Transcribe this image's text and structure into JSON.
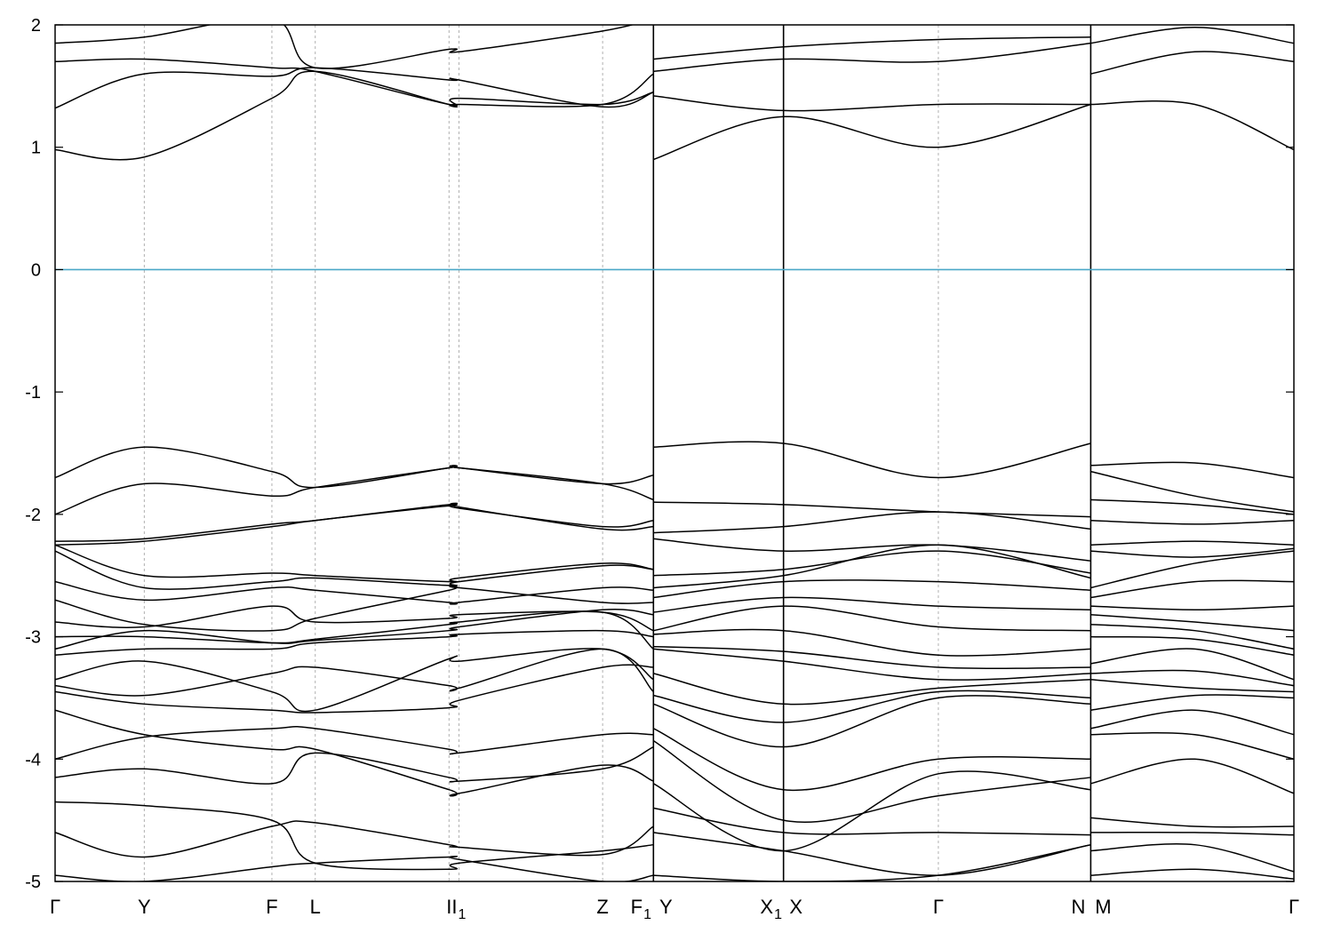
{
  "chart_data": {
    "type": "line",
    "title": "",
    "xlabel": "",
    "ylabel": "",
    "ylim": [
      -5,
      2
    ],
    "xlim": [
      0,
      1
    ],
    "yticks": [
      -5,
      -4,
      -3,
      -2,
      -1,
      0,
      1,
      2
    ],
    "grid": "vertical dashed lines at high-symmetry k-points",
    "fermi_level": {
      "value": 0,
      "color": "#4aa8c8"
    },
    "band_color": "#000000",
    "kpoints": [
      {
        "label": "Γ",
        "sub": "",
        "x": 0.0
      },
      {
        "label": "Y",
        "sub": "",
        "x": 0.072
      },
      {
        "label": "F",
        "sub": "",
        "x": 0.175
      },
      {
        "label": "L",
        "sub": "",
        "x": 0.21
      },
      {
        "label": "I",
        "sub": "",
        "x": 0.318
      },
      {
        "label": "I",
        "sub": "1",
        "x": 0.326
      },
      {
        "label": "Z",
        "sub": "",
        "x": 0.442
      },
      {
        "label": "F",
        "sub": "1",
        "x": 0.483
      },
      {
        "label": "Y",
        "sub": "",
        "x": 0.483
      },
      {
        "label": "X",
        "sub": "1",
        "x": 0.588
      },
      {
        "label": "X",
        "sub": "",
        "x": 0.588
      },
      {
        "label": "Γ",
        "sub": "",
        "x": 0.713
      },
      {
        "label": "N",
        "sub": "",
        "x": 0.836
      },
      {
        "label": "M",
        "sub": "",
        "x": 0.836
      },
      {
        "label": "Γ",
        "sub": "",
        "x": 1.0
      }
    ],
    "segments": [
      {
        "x": [
          0.0,
          0.072,
          0.175,
          0.21,
          0.318,
          0.326,
          0.442,
          0.483
        ],
        "bands": [
          [
            -4.95,
            -5.0,
            -4.88,
            -4.85,
            -4.8,
            -4.82,
            -5.0,
            -4.95
          ],
          [
            -4.6,
            -4.8,
            -4.55,
            -4.52,
            -4.7,
            -4.72,
            -4.78,
            -4.55
          ],
          [
            -4.35,
            -4.38,
            -4.5,
            -4.85,
            -4.9,
            -4.85,
            -4.75,
            -4.7
          ],
          [
            -4.15,
            -4.08,
            -4.2,
            -3.95,
            -4.15,
            -4.18,
            -4.08,
            -3.9
          ],
          [
            -4.0,
            -3.82,
            -3.75,
            -3.75,
            -3.92,
            -3.95,
            -3.8,
            -3.8
          ],
          [
            -3.6,
            -3.8,
            -3.92,
            -3.92,
            -4.25,
            -4.28,
            -4.05,
            -4.18
          ],
          [
            -3.45,
            -3.55,
            -3.6,
            -3.62,
            -3.58,
            -3.52,
            -3.25,
            -3.25
          ],
          [
            -3.4,
            -3.48,
            -3.3,
            -3.25,
            -3.4,
            -3.42,
            -3.1,
            -3.45
          ],
          [
            -3.35,
            -3.2,
            -3.45,
            -3.6,
            -3.18,
            -3.2,
            -3.1,
            -3.35
          ],
          [
            -3.15,
            -3.1,
            -3.1,
            -3.05,
            -3.0,
            -2.98,
            -2.95,
            -3.0
          ],
          [
            -3.1,
            -2.95,
            -3.05,
            -3.03,
            -2.95,
            -2.92,
            -2.78,
            -2.82
          ],
          [
            -3.0,
            -3.0,
            -3.05,
            -3.02,
            -2.9,
            -2.88,
            -2.8,
            -3.1
          ],
          [
            -2.88,
            -2.92,
            -2.75,
            -2.88,
            -2.85,
            -2.82,
            -2.8,
            -2.95
          ],
          [
            -2.7,
            -2.9,
            -2.95,
            -2.85,
            -2.62,
            -2.6,
            -2.72,
            -2.72
          ],
          [
            -2.55,
            -2.7,
            -2.6,
            -2.62,
            -2.72,
            -2.72,
            -2.6,
            -2.62
          ],
          [
            -2.3,
            -2.6,
            -2.55,
            -2.52,
            -2.58,
            -2.55,
            -2.42,
            -2.45
          ],
          [
            -2.25,
            -2.5,
            -2.48,
            -2.5,
            -2.55,
            -2.52,
            -2.4,
            -2.45
          ],
          [
            -2.25,
            -2.22,
            -2.1,
            -2.05,
            -1.93,
            -1.95,
            -2.1,
            -2.05
          ],
          [
            -2.22,
            -2.2,
            -2.08,
            -2.05,
            -1.92,
            -1.94,
            -2.12,
            -2.1
          ],
          [
            -2.0,
            -1.75,
            -1.85,
            -1.78,
            -1.62,
            -1.62,
            -1.75,
            -1.88
          ],
          [
            -1.7,
            -1.45,
            -1.65,
            -1.78,
            -1.62,
            -1.62,
            -1.75,
            -1.68
          ],
          [
            0.98,
            0.92,
            1.4,
            1.62,
            1.35,
            1.35,
            1.35,
            1.6
          ],
          [
            1.32,
            1.6,
            1.58,
            1.65,
            1.55,
            1.55,
            1.33,
            1.45
          ],
          [
            1.7,
            1.72,
            1.65,
            1.62,
            1.35,
            1.4,
            1.35,
            1.45
          ],
          [
            1.85,
            1.9,
            2.05,
            1.65,
            1.8,
            1.78,
            1.95,
            2.05
          ]
        ]
      },
      {
        "x": [
          0.483,
          0.588,
          0.713,
          0.836
        ],
        "bands": [
          [
            -4.95,
            -5.0,
            -4.95,
            -4.7
          ],
          [
            -4.6,
            -4.75,
            -4.95,
            -4.7
          ],
          [
            -4.4,
            -4.6,
            -4.6,
            -4.62
          ],
          [
            -4.2,
            -4.75,
            -4.12,
            -4.25
          ],
          [
            -3.85,
            -4.5,
            -4.3,
            -4.15
          ],
          [
            -3.75,
            -4.25,
            -4.0,
            -4.0
          ],
          [
            -3.55,
            -3.9,
            -3.5,
            -3.55
          ],
          [
            -3.48,
            -3.7,
            -3.45,
            -3.5
          ],
          [
            -3.3,
            -3.55,
            -3.42,
            -3.35
          ],
          [
            -3.1,
            -3.2,
            -3.35,
            -3.3
          ],
          [
            -3.08,
            -3.12,
            -3.25,
            -3.25
          ],
          [
            -2.98,
            -2.95,
            -3.15,
            -3.1
          ],
          [
            -2.95,
            -2.75,
            -2.92,
            -2.95
          ],
          [
            -2.8,
            -2.68,
            -2.75,
            -2.78
          ],
          [
            -2.68,
            -2.55,
            -2.55,
            -2.62
          ],
          [
            -2.6,
            -2.5,
            -2.25,
            -2.52
          ],
          [
            -2.5,
            -2.45,
            -2.3,
            -2.48
          ],
          [
            -2.2,
            -2.3,
            -2.25,
            -2.38
          ],
          [
            -2.15,
            -2.1,
            -1.98,
            -2.12
          ],
          [
            -1.9,
            -1.92,
            -1.98,
            -2.02
          ],
          [
            -1.45,
            -1.42,
            -1.7,
            -1.42
          ],
          [
            0.9,
            1.25,
            1.0,
            1.35
          ],
          [
            1.42,
            1.3,
            1.35,
            1.35
          ],
          [
            1.62,
            1.72,
            1.7,
            1.85
          ],
          [
            1.72,
            1.82,
            1.88,
            1.9
          ]
        ]
      },
      {
        "x": [
          0.836,
          0.92,
          1.0
        ],
        "bands": [
          [
            -4.95,
            -4.9,
            -4.98
          ],
          [
            -4.75,
            -4.7,
            -4.92
          ],
          [
            -4.6,
            -4.6,
            -4.62
          ],
          [
            -4.48,
            -4.55,
            -4.55
          ],
          [
            -4.2,
            -4.0,
            -4.28
          ],
          [
            -3.8,
            -3.8,
            -4.0
          ],
          [
            -3.75,
            -3.6,
            -3.8
          ],
          [
            -3.6,
            -3.48,
            -3.5
          ],
          [
            -3.35,
            -3.42,
            -3.45
          ],
          [
            -3.3,
            -3.28,
            -3.4
          ],
          [
            -3.22,
            -3.1,
            -3.35
          ],
          [
            -3.0,
            -3.02,
            -3.15
          ],
          [
            -2.9,
            -2.95,
            -3.1
          ],
          [
            -2.82,
            -2.88,
            -2.95
          ],
          [
            -2.75,
            -2.78,
            -2.75
          ],
          [
            -2.68,
            -2.55,
            -2.55
          ],
          [
            -2.6,
            -2.4,
            -2.3
          ],
          [
            -2.3,
            -2.35,
            -2.28
          ],
          [
            -2.25,
            -2.22,
            -2.25
          ],
          [
            -2.05,
            -2.08,
            -2.05
          ],
          [
            -1.88,
            -1.92,
            -2.0
          ],
          [
            -1.65,
            -1.85,
            -1.98
          ],
          [
            -1.6,
            -1.58,
            -1.7
          ],
          [
            1.35,
            1.35,
            0.98
          ],
          [
            1.6,
            1.78,
            1.7
          ],
          [
            1.85,
            1.98,
            1.85
          ]
        ]
      }
    ]
  }
}
